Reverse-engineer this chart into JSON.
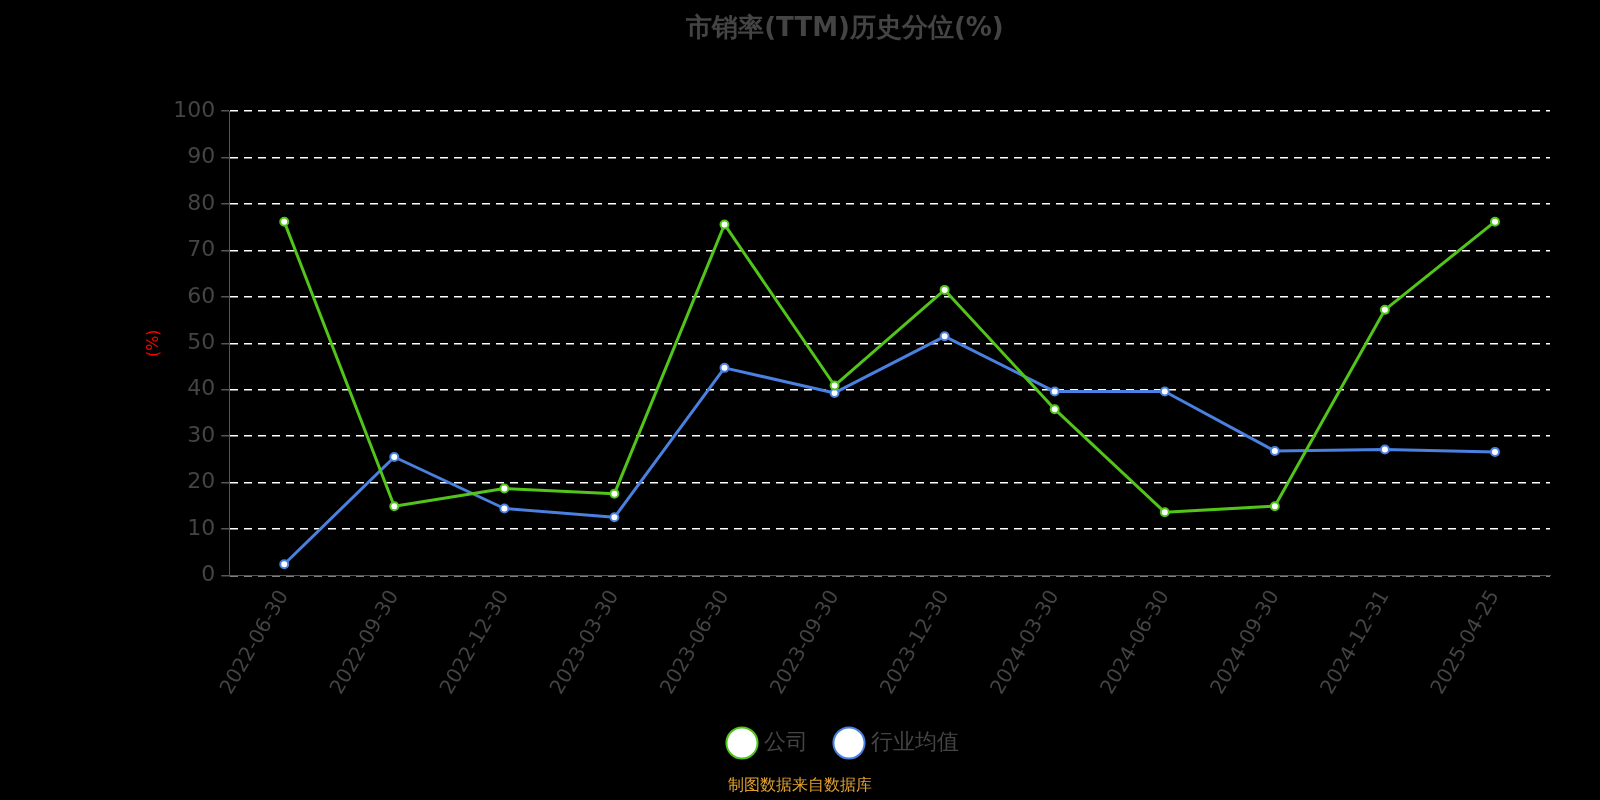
{
  "chart_data": {
    "type": "line",
    "title": "市销率(TTM)历史分位(%)",
    "ylabel": "(%)",
    "categories": [
      "2022-06-30",
      "2022-09-30",
      "2022-12-30",
      "2023-03-30",
      "2023-06-30",
      "2023-09-30",
      "2023-12-30",
      "2024-03-30",
      "2024-06-30",
      "2024-09-30",
      "2024-12-31",
      "2025-04-25"
    ],
    "series": [
      {
        "name": "公司",
        "color": "#52c41a",
        "values": [
          76.2,
          14.9,
          18.7,
          17.6,
          75.6,
          40.9,
          61.5,
          35.8,
          13.6,
          14.9,
          57.2,
          76.2
        ]
      },
      {
        "name": "行业均值",
        "color": "#4a80e0",
        "values": [
          2.4,
          25.5,
          14.4,
          12.5,
          44.7,
          39.3,
          51.5,
          39.6,
          39.6,
          26.8,
          27.1,
          26.6
        ]
      }
    ],
    "ylim": [
      0,
      100
    ],
    "yticks": [
      0,
      10,
      20,
      30,
      40,
      50,
      60,
      70,
      80,
      90,
      100
    ],
    "grid": "y",
    "legend": "bottom",
    "marker": "circle",
    "line_style": "solid",
    "annotations": [
      "制图数据来自数据库"
    ]
  }
}
